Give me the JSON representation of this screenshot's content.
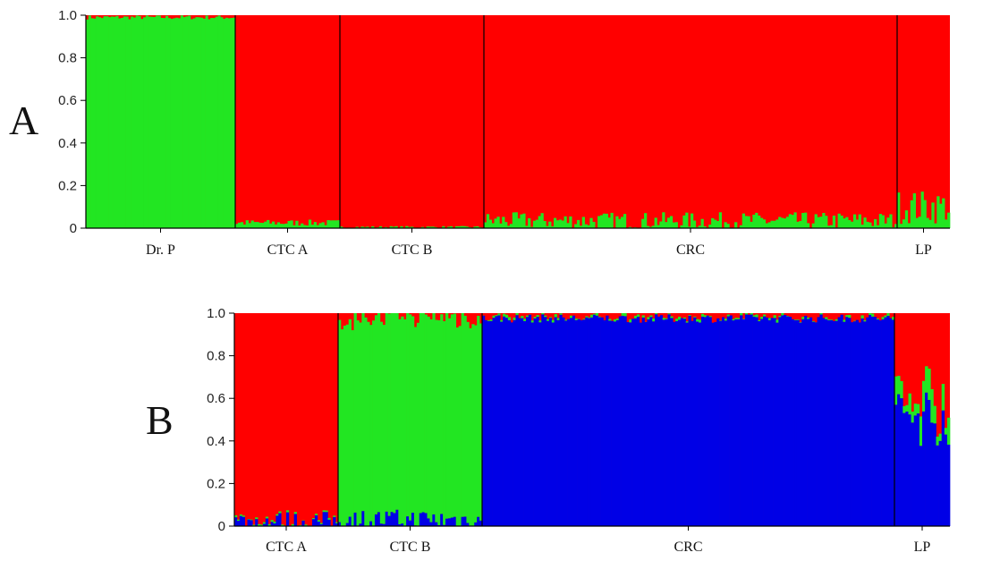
{
  "colors": {
    "red": "#ff0000",
    "green": "#22e622",
    "blue": "#0000e6"
  },
  "chart_data": [
    {
      "type": "bar",
      "panel": "A",
      "stacked": true,
      "yticks": [
        "0",
        "0.2",
        "0.4",
        "0.6",
        "0.8",
        "1.0"
      ],
      "ylim": [
        0,
        1
      ],
      "component_order": [
        "green",
        "red"
      ],
      "groups": [
        {
          "name": "Dr. P",
          "n": 60,
          "color_top": "red",
          "green_mean": 0.99,
          "green_jitter": 0.01
        },
        {
          "name": "CTC A",
          "n": 40,
          "color_top": "red",
          "green_mean": 0.025,
          "green_jitter": 0.015
        },
        {
          "name": "CTC B",
          "n": 55,
          "color_top": "red",
          "green_mean": 0.005,
          "green_jitter": 0.005
        },
        {
          "name": "CRC",
          "n": 160,
          "color_top": "red",
          "green_mean": 0.035,
          "green_jitter": 0.04
        },
        {
          "name": "LP",
          "n": 20,
          "color_top": "red",
          "green_mean": 0.1,
          "green_jitter": 0.08
        }
      ]
    },
    {
      "type": "bar",
      "panel": "B",
      "stacked": true,
      "yticks": [
        "0",
        "0.2",
        "0.4",
        "0.6",
        "0.8",
        "1.0"
      ],
      "ylim": [
        0,
        1
      ],
      "component_order": [
        "blue",
        "green",
        "red"
      ],
      "groups": [
        {
          "name": "CTC A",
          "n": 40,
          "blue_mean": 0.02,
          "blue_jitter": 0.05,
          "green_mean": 0.005,
          "green_jitter": 0.005
        },
        {
          "name": "CTC B",
          "n": 55,
          "blue_mean": 0.03,
          "blue_jitter": 0.05,
          "green_mean": 0.95,
          "green_jitter": 0.03
        },
        {
          "name": "CRC",
          "n": 160,
          "blue_mean": 0.975,
          "blue_jitter": 0.02,
          "green_mean": 0.005,
          "green_jitter": 0.01
        },
        {
          "name": "LP",
          "n": 20,
          "blue_mean": 0.52,
          "blue_jitter": 0.15,
          "green_mean": 0.1,
          "green_jitter": 0.07
        }
      ]
    }
  ],
  "panels": {
    "a_label": "A",
    "b_label": "B"
  }
}
